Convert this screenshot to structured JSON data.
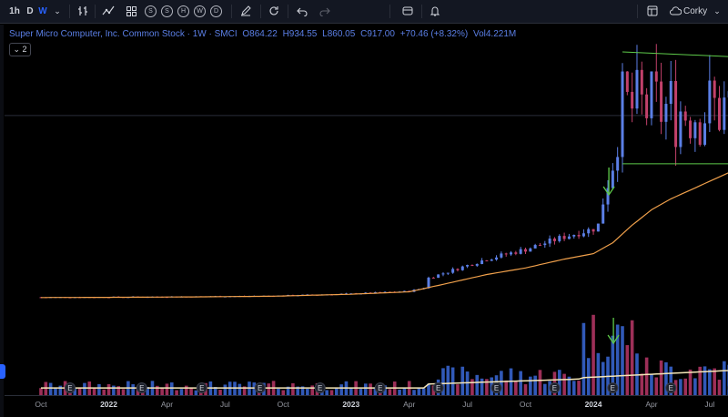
{
  "toolbar": {
    "timeframes": [
      "1h",
      "D",
      "W"
    ],
    "active_timeframe": "W",
    "bar_style_circles": [
      "S",
      "S",
      "H",
      "W",
      "D"
    ],
    "account_label": "Corky"
  },
  "legend": {
    "title": "Super Micro Computer, Inc. Common Stock · 1W · SMCI",
    "open": "O864.22",
    "high": "H934.55",
    "low": "L860.05",
    "close": "C917.00",
    "change": "+70.46 (+8.32%)",
    "volume": "Vol4.221M",
    "indicator_count": "2"
  },
  "colors": {
    "up": "#5b7fe6",
    "down": "#c2416b",
    "ma": "#f0a04b",
    "annotation": "#5ecb4a",
    "volume_up": "#3159b8",
    "volume_down": "#9d2f58"
  },
  "chart_data": {
    "type": "candlestick",
    "x_tick_labels": [
      "Oct",
      "2022",
      "Apr",
      "Jul",
      "Oct",
      "2023",
      "Apr",
      "Jul",
      "Oct",
      "2024",
      "Apr",
      "Jul"
    ],
    "x_tick_index": [
      0,
      3.5,
      6.5,
      9.5,
      12.5,
      16,
      19,
      22,
      25,
      28.5,
      31.5,
      34.5
    ],
    "earnings_markers_index": [
      1.5,
      5.2,
      8.3,
      11.3,
      14.4,
      17.5,
      20.5,
      23.5,
      26.5,
      29.5,
      32.5,
      35.7
    ],
    "earnings_label": "E",
    "volume_tick_labels": [
      "E",
      "E",
      "E",
      "E",
      "E",
      "E",
      "E",
      "E",
      "E",
      "E",
      "E",
      "E"
    ],
    "price_range": [
      0,
      1200
    ],
    "volume_range": [
      0,
      12
    ],
    "horizontal_level": 860,
    "trend_lines": [
      {
        "from_index": 30,
        "from_price": 1150,
        "to_index": 36.5,
        "to_price": 1125
      },
      {
        "from_index": 30,
        "from_price": 640,
        "to_index": 36.5,
        "to_price": 640
      }
    ],
    "arrows_index": [
      29.3
    ],
    "moving_average": [
      [
        0,
        30
      ],
      [
        4,
        31
      ],
      [
        8,
        33
      ],
      [
        12,
        36
      ],
      [
        16,
        45
      ],
      [
        19,
        56
      ],
      [
        21,
        95
      ],
      [
        23,
        135
      ],
      [
        25,
        165
      ],
      [
        27,
        205
      ],
      [
        28.5,
        230
      ],
      [
        29.5,
        280
      ],
      [
        30.5,
        360
      ],
      [
        31.5,
        430
      ],
      [
        32.5,
        480
      ],
      [
        33.5,
        520
      ],
      [
        34.5,
        560
      ],
      [
        35.5,
        600
      ],
      [
        36.5,
        650
      ]
    ]
  }
}
